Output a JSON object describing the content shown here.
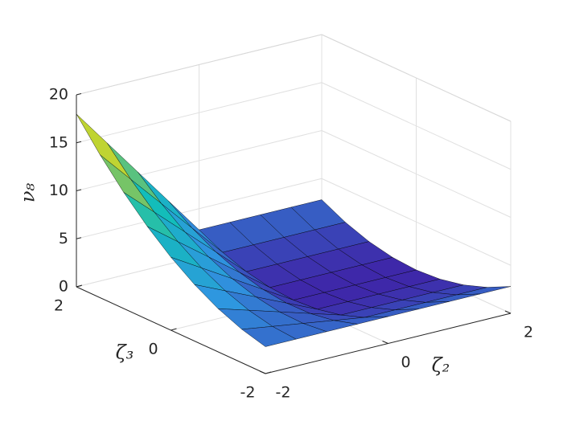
{
  "chart_data": {
    "type": "surface",
    "xlabel": "ζ₂",
    "ylabel": "ζ₃",
    "zlabel": "ν₈",
    "x": [
      -2,
      -1.5,
      -1,
      -0.5,
      0,
      0.5,
      1,
      1.5,
      2
    ],
    "y": [
      -2,
      -1.5,
      -1,
      -0.5,
      0,
      0.5,
      1,
      1.5,
      2
    ],
    "z": [
      [
        2.8,
        2.8,
        2.8,
        2.8,
        2.8,
        2.8,
        2.8,
        2.8,
        2.8
      ],
      [
        3.48,
        3.0,
        2.53,
        2.05,
        1.58,
        1.58,
        1.58,
        1.58,
        1.58
      ],
      [
        4.5,
        3.55,
        2.6,
        1.65,
        0.7,
        0.7,
        0.7,
        0.7,
        0.7
      ],
      [
        5.88,
        4.45,
        3.03,
        1.6,
        0.18,
        0.18,
        0.18,
        0.18,
        0.18
      ],
      [
        7.6,
        5.7,
        3.8,
        1.9,
        0,
        0,
        0,
        0,
        0
      ],
      [
        9.68,
        7.3,
        4.93,
        2.55,
        0.18,
        0.18,
        0.18,
        0.18,
        0.18
      ],
      [
        12.1,
        9.25,
        6.4,
        3.55,
        0.7,
        0.7,
        0.7,
        0.7,
        0.7
      ],
      [
        14.88,
        11.55,
        8.23,
        4.9,
        1.58,
        1.58,
        1.58,
        1.58,
        1.58
      ],
      [
        18,
        14.2,
        10.4,
        6.6,
        2.8,
        2.8,
        2.8,
        2.8,
        2.8
      ]
    ],
    "xlim": [
      -2,
      2
    ],
    "xticks": [
      -2,
      0,
      2
    ],
    "ylim": [
      -2,
      2
    ],
    "yticks": [
      -2,
      0,
      2
    ],
    "zlim": [
      0,
      20
    ],
    "zticks": [
      0,
      5,
      10,
      15,
      20
    ],
    "grid": true,
    "colormap": "parula"
  }
}
